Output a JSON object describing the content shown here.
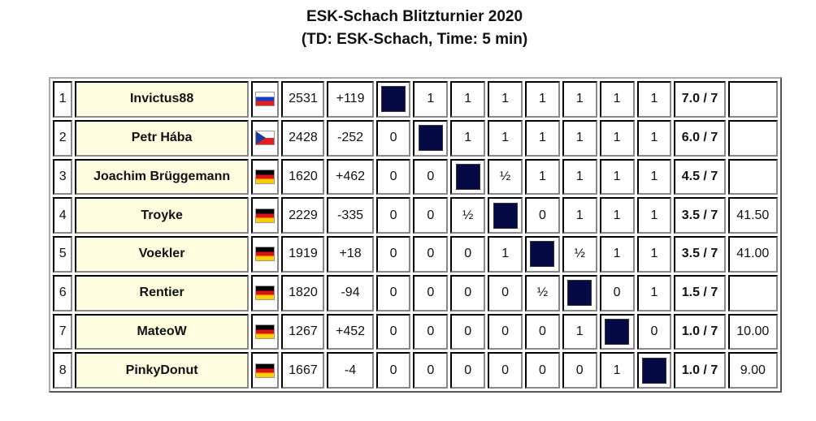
{
  "title": "ESK-Schach Blitzturnier 2020",
  "subtitle": "(TD: ESK-Schach, Time: 5 min)",
  "colors": {
    "name_bg": "#fffce0",
    "self_cell": "#050a45"
  },
  "rows": [
    {
      "rank": "1",
      "name": "Invictus88",
      "flag": "russia-flag",
      "rating": "2531",
      "change": "+119",
      "results": [
        "",
        "1",
        "1",
        "1",
        "1",
        "1",
        "1",
        "1"
      ],
      "score": "7.0 / 7",
      "tiebreak": ""
    },
    {
      "rank": "2",
      "name": "Petr Hába",
      "flag": "czech-flag",
      "rating": "2428",
      "change": "-252",
      "results": [
        "0",
        "",
        "1",
        "1",
        "1",
        "1",
        "1",
        "1"
      ],
      "score": "6.0 / 7",
      "tiebreak": ""
    },
    {
      "rank": "3",
      "name": "Joachim Brüggemann",
      "flag": "germany-flag",
      "rating": "1620",
      "change": "+462",
      "results": [
        "0",
        "0",
        "",
        "½",
        "1",
        "1",
        "1",
        "1"
      ],
      "score": "4.5 / 7",
      "tiebreak": ""
    },
    {
      "rank": "4",
      "name": "Troyke",
      "flag": "germany-flag",
      "rating": "2229",
      "change": "-335",
      "results": [
        "0",
        "0",
        "½",
        "",
        "0",
        "1",
        "1",
        "1"
      ],
      "score": "3.5 / 7",
      "tiebreak": "41.50"
    },
    {
      "rank": "5",
      "name": "Voekler",
      "flag": "germany-flag",
      "rating": "1919",
      "change": "+18",
      "results": [
        "0",
        "0",
        "0",
        "1",
        "",
        "½",
        "1",
        "1"
      ],
      "score": "3.5 / 7",
      "tiebreak": "41.00"
    },
    {
      "rank": "6",
      "name": "Rentier",
      "flag": "germany-flag",
      "rating": "1820",
      "change": "-94",
      "results": [
        "0",
        "0",
        "0",
        "0",
        "½",
        "",
        "0",
        "1"
      ],
      "score": "1.5 / 7",
      "tiebreak": ""
    },
    {
      "rank": "7",
      "name": "MateoW",
      "flag": "germany-flag",
      "rating": "1267",
      "change": "+452",
      "results": [
        "0",
        "0",
        "0",
        "0",
        "0",
        "1",
        "",
        "0"
      ],
      "score": "1.0 / 7",
      "tiebreak": "10.00"
    },
    {
      "rank": "8",
      "name": "PinkyDonut",
      "flag": "germany-flag",
      "rating": "1667",
      "change": "-4",
      "results": [
        "0",
        "0",
        "0",
        "0",
        "0",
        "0",
        "1",
        ""
      ],
      "score": "1.0 / 7",
      "tiebreak": "9.00"
    }
  ]
}
